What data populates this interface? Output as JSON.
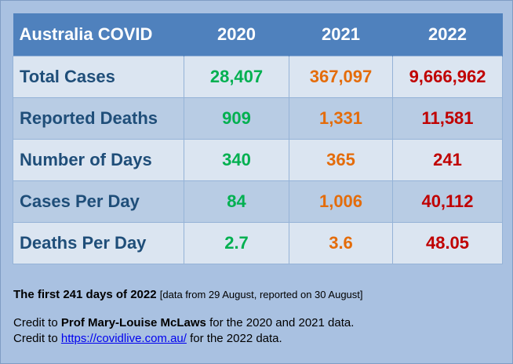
{
  "colors": {
    "header_bg": "#4f81bd",
    "label_text": "#1f4e79",
    "year_2020": "#00b050",
    "year_2021": "#e46c0a",
    "year_2022": "#c00000",
    "page_bg": "#a9c1e1"
  },
  "table": {
    "title": "Australia COVID",
    "years": [
      "2020",
      "2021",
      "2022"
    ],
    "rows": [
      {
        "label": "Total Cases",
        "values": [
          "28,407",
          "367,097",
          "9,666,962"
        ]
      },
      {
        "label": "Reported Deaths",
        "values": [
          "909",
          "1,331",
          "11,581"
        ]
      },
      {
        "label": "Number of Days",
        "values": [
          "340",
          "365",
          "241"
        ]
      },
      {
        "label": "Cases Per Day",
        "values": [
          "84",
          "1,006",
          "40,112"
        ]
      },
      {
        "label": "Deaths Per Day",
        "values": [
          "2.7",
          "3.6",
          "48.05"
        ]
      }
    ]
  },
  "notes": {
    "first_bold": "The first 241 days of 2022",
    "first_bracket": "[data from 29 August, reported on 30 August]",
    "credit1_prefix": "Credit to ",
    "credit1_name": "Prof Mary-Louise McLaws",
    "credit1_suffix": " for the 2020 and 2021 data.",
    "credit2_prefix": "Credit to ",
    "credit2_link": "https://covidlive.com.au/",
    "credit2_suffix": " for the 2022 data."
  }
}
